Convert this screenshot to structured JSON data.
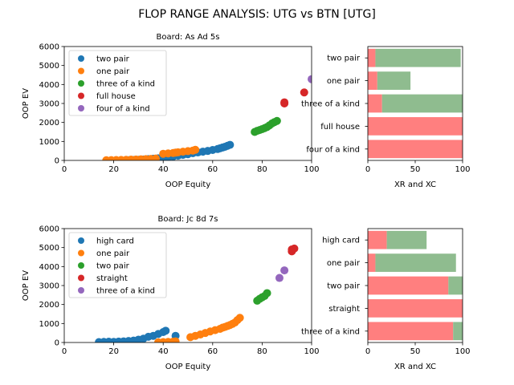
{
  "figure": {
    "suptitle": "FLOP RANGE ANALYSIS: UTG vs BTN [UTG]"
  },
  "colors": {
    "tab_blue": "#1f77b4",
    "tab_orange": "#ff7f0e",
    "tab_green": "#2ca02c",
    "tab_red": "#d62728",
    "tab_purple": "#9467bd",
    "bar_red": "#ff7f7f",
    "bar_green": "#8fbc8f"
  },
  "chart_data": [
    {
      "type": "scatter",
      "title": "Board: As Ad 5s",
      "xlabel": "OOP Equity",
      "ylabel": "OOP EV",
      "xlim": [
        0,
        100
      ],
      "ylim": [
        0,
        6000
      ],
      "xticks": [
        "0",
        "20",
        "40",
        "60",
        "80",
        "100"
      ],
      "yticks": [
        "0",
        "1000",
        "2000",
        "3000",
        "4000",
        "5000",
        "6000"
      ],
      "legend_position": "upper-left",
      "series": [
        {
          "name": "two pair",
          "color": "#1f77b4",
          "points": [
            [
              26,
              10
            ],
            [
              28,
              20
            ],
            [
              30,
              30
            ],
            [
              32,
              50
            ],
            [
              34,
              70
            ],
            [
              36,
              90
            ],
            [
              38,
              110
            ],
            [
              40,
              140
            ],
            [
              42,
              170
            ],
            [
              44,
              210
            ],
            [
              46,
              250
            ],
            [
              48,
              290
            ],
            [
              50,
              330
            ],
            [
              52,
              380
            ],
            [
              54,
              420
            ],
            [
              56,
              460
            ],
            [
              58,
              500
            ],
            [
              60,
              550
            ],
            [
              62,
              600
            ],
            [
              63,
              640
            ],
            [
              64,
              680
            ],
            [
              65,
              720
            ],
            [
              66,
              770
            ],
            [
              67,
              820
            ]
          ]
        },
        {
          "name": "one pair",
          "color": "#ff7f0e",
          "points": [
            [
              17,
              10
            ],
            [
              19,
              15
            ],
            [
              21,
              20
            ],
            [
              23,
              25
            ],
            [
              25,
              30
            ],
            [
              27,
              40
            ],
            [
              29,
              50
            ],
            [
              31,
              60
            ],
            [
              33,
              70
            ],
            [
              35,
              80
            ],
            [
              37,
              100
            ],
            [
              40,
              350
            ],
            [
              42,
              370
            ],
            [
              44,
              390
            ],
            [
              45,
              410
            ],
            [
              46,
              430
            ],
            [
              48,
              460
            ],
            [
              50,
              490
            ],
            [
              52,
              520
            ],
            [
              53,
              560
            ]
          ]
        },
        {
          "name": "three of a kind",
          "color": "#2ca02c",
          "points": [
            [
              77,
              1500
            ],
            [
              78,
              1560
            ],
            [
              79,
              1600
            ],
            [
              80,
              1650
            ],
            [
              81,
              1700
            ],
            [
              82,
              1760
            ],
            [
              83,
              1850
            ],
            [
              84,
              1950
            ],
            [
              85,
              2020
            ],
            [
              86,
              2080
            ]
          ]
        },
        {
          "name": "full house",
          "color": "#d62728",
          "points": [
            [
              89,
              3000
            ],
            [
              89,
              3060
            ],
            [
              97,
              3580
            ]
          ]
        },
        {
          "name": "four of a kind",
          "color": "#9467bd",
          "points": [
            [
              100,
              4280
            ]
          ]
        }
      ]
    },
    {
      "type": "bar",
      "orientation": "horizontal",
      "stacked": true,
      "xlabel": "XR and XC",
      "xlim": [
        0,
        100
      ],
      "xticks": [
        "0",
        "50",
        "100"
      ],
      "categories": [
        "two pair",
        "one pair",
        "three of a kind",
        "full house",
        "four of a kind"
      ],
      "series": [
        {
          "color": "#ff7f7f",
          "values": [
            8,
            10,
            15,
            100,
            100
          ]
        },
        {
          "color": "#8fbc8f",
          "values": [
            90,
            35,
            85,
            0,
            0
          ]
        }
      ]
    },
    {
      "type": "scatter",
      "title": "Board: Jc 8d 7s",
      "xlabel": "OOP Equity",
      "ylabel": "OOP EV",
      "xlim": [
        0,
        100
      ],
      "ylim": [
        0,
        6000
      ],
      "xticks": [
        "0",
        "20",
        "40",
        "60",
        "80",
        "100"
      ],
      "yticks": [
        "0",
        "1000",
        "2000",
        "3000",
        "4000",
        "5000",
        "6000"
      ],
      "legend_position": "upper-left",
      "series": [
        {
          "name": "high card",
          "color": "#1f77b4",
          "points": [
            [
              14,
              20
            ],
            [
              16,
              30
            ],
            [
              18,
              40
            ],
            [
              20,
              30
            ],
            [
              22,
              50
            ],
            [
              24,
              60
            ],
            [
              26,
              80
            ],
            [
              28,
              100
            ],
            [
              30,
              150
            ],
            [
              32,
              200
            ],
            [
              34,
              300
            ],
            [
              36,
              350
            ],
            [
              38,
              450
            ],
            [
              40,
              550
            ],
            [
              41,
              620
            ],
            [
              45,
              350
            ]
          ]
        },
        {
          "name": "one pair",
          "color": "#ff7f0e",
          "points": [
            [
              38,
              10
            ],
            [
              40,
              20
            ],
            [
              42,
              30
            ],
            [
              44,
              40
            ],
            [
              45,
              60
            ],
            [
              51,
              280
            ],
            [
              53,
              350
            ],
            [
              55,
              420
            ],
            [
              57,
              500
            ],
            [
              59,
              580
            ],
            [
              61,
              650
            ],
            [
              63,
              720
            ],
            [
              64,
              780
            ],
            [
              65,
              820
            ],
            [
              66,
              870
            ],
            [
              67,
              920
            ],
            [
              68,
              980
            ],
            [
              69,
              1050
            ],
            [
              70,
              1180
            ],
            [
              71,
              1300
            ]
          ]
        },
        {
          "name": "two pair",
          "color": "#2ca02c",
          "points": [
            [
              78,
              2200
            ],
            [
              79,
              2300
            ],
            [
              80,
              2380
            ],
            [
              81,
              2450
            ],
            [
              82,
              2600
            ]
          ]
        },
        {
          "name": "straight",
          "color": "#d62728",
          "points": [
            [
              92,
              4800
            ],
            [
              92,
              4900
            ],
            [
              93,
              4950
            ]
          ]
        },
        {
          "name": "three of a kind",
          "color": "#9467bd",
          "points": [
            [
              87,
              3400
            ],
            [
              89,
              3800
            ]
          ]
        }
      ]
    },
    {
      "type": "bar",
      "orientation": "horizontal",
      "stacked": true,
      "xlabel": "XR and XC",
      "xlim": [
        0,
        100
      ],
      "xticks": [
        "0",
        "50",
        "100"
      ],
      "categories": [
        "high card",
        "one pair",
        "two pair",
        "straight",
        "three of a kind"
      ],
      "series": [
        {
          "color": "#ff7f7f",
          "values": [
            20,
            8,
            85,
            100,
            90
          ]
        },
        {
          "color": "#8fbc8f",
          "values": [
            42,
            85,
            15,
            0,
            10
          ]
        }
      ]
    }
  ]
}
